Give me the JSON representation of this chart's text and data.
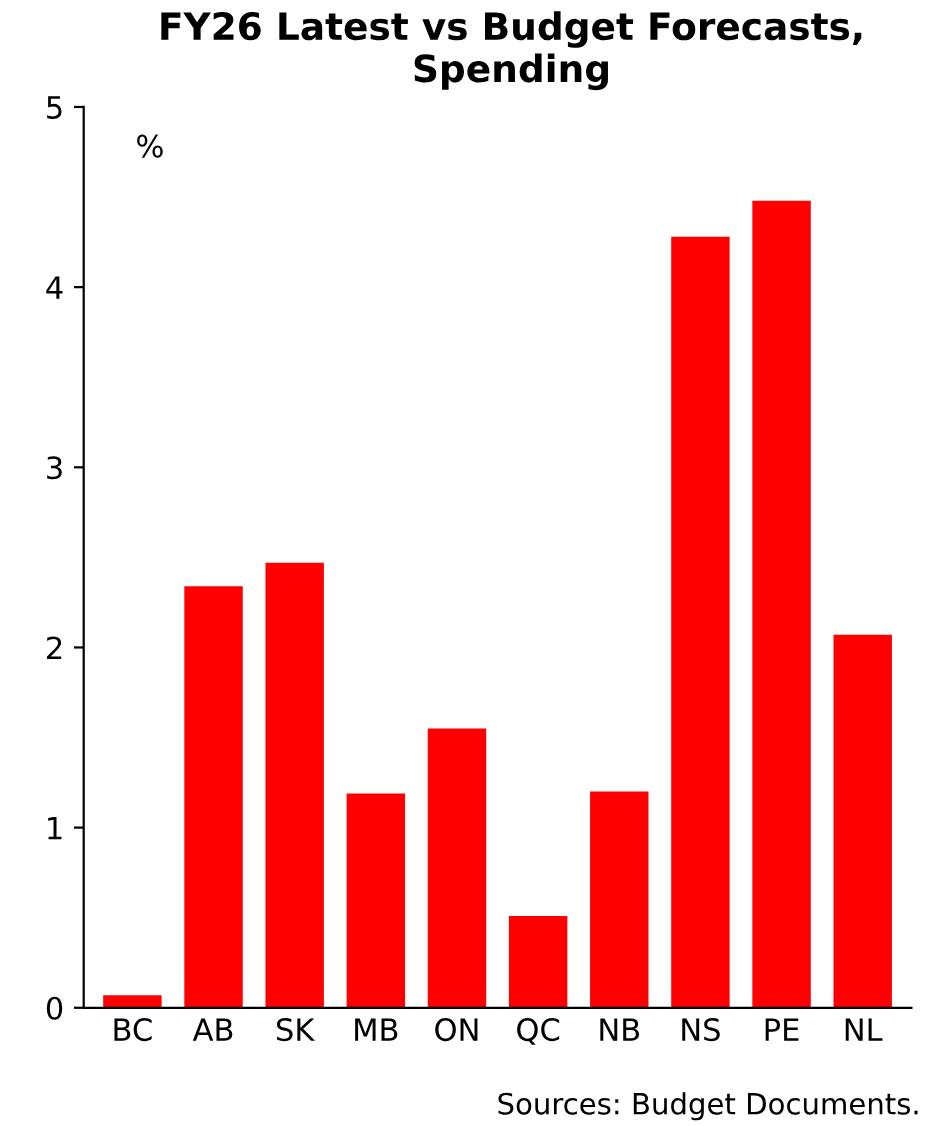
{
  "chart_data": {
    "type": "bar",
    "title": "FY26 Latest vs Budget Forecasts,\nSpending",
    "categories": [
      "BC",
      "AB",
      "SK",
      "MB",
      "ON",
      "QC",
      "NB",
      "NS",
      "PE",
      "NL"
    ],
    "values": [
      0.07,
      2.34,
      2.47,
      1.19,
      1.55,
      0.51,
      1.2,
      4.28,
      4.48,
      2.07
    ],
    "color": "#ff0000",
    "ylim": [
      0,
      5
    ],
    "yticks": [
      0,
      1,
      2,
      3,
      4,
      5
    ],
    "grid": false,
    "ylabel": "%",
    "annotations": [
      "Sources: Budget Documents."
    ]
  }
}
